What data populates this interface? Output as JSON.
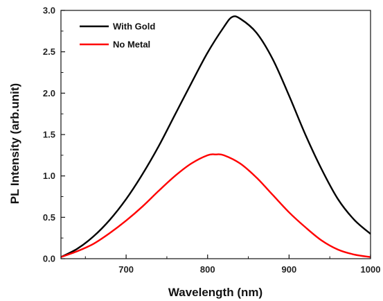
{
  "chart_data": {
    "type": "line",
    "title": "",
    "xlabel": "Wavelength (nm)",
    "ylabel": "PL Intensity (arb.unit)",
    "xlim": [
      620,
      1000
    ],
    "ylim": [
      0,
      3.0
    ],
    "x_ticks": [
      700,
      800,
      900,
      1000
    ],
    "x_tick_labels": [
      "700",
      "800",
      "900",
      "1000"
    ],
    "y_ticks": [
      0.0,
      0.5,
      1.0,
      1.5,
      2.0,
      2.5,
      3.0
    ],
    "y_tick_labels": [
      "0.0",
      "0.5",
      "1.0",
      "1.5",
      "2.0",
      "2.5",
      "3.0"
    ],
    "grid": false,
    "legend_position": "top-left",
    "series": [
      {
        "name": "With Gold",
        "color": "#000000",
        "x": [
          620,
          640,
          660,
          680,
          700,
          720,
          740,
          760,
          780,
          800,
          820,
          830,
          840,
          860,
          880,
          900,
          920,
          940,
          960,
          980,
          1000
        ],
        "y": [
          0.02,
          0.12,
          0.27,
          0.47,
          0.72,
          1.02,
          1.36,
          1.74,
          2.12,
          2.49,
          2.8,
          2.92,
          2.9,
          2.73,
          2.41,
          1.97,
          1.5,
          1.08,
          0.72,
          0.47,
          0.3
        ]
      },
      {
        "name": "No Metal",
        "color": "#ff0000",
        "x": [
          620,
          640,
          660,
          680,
          700,
          720,
          740,
          760,
          780,
          800,
          810,
          820,
          840,
          860,
          880,
          900,
          920,
          940,
          960,
          980,
          1000
        ],
        "y": [
          0.02,
          0.09,
          0.18,
          0.31,
          0.46,
          0.63,
          0.82,
          1.0,
          1.15,
          1.25,
          1.26,
          1.25,
          1.15,
          0.98,
          0.77,
          0.56,
          0.38,
          0.22,
          0.11,
          0.05,
          0.02
        ]
      }
    ]
  }
}
